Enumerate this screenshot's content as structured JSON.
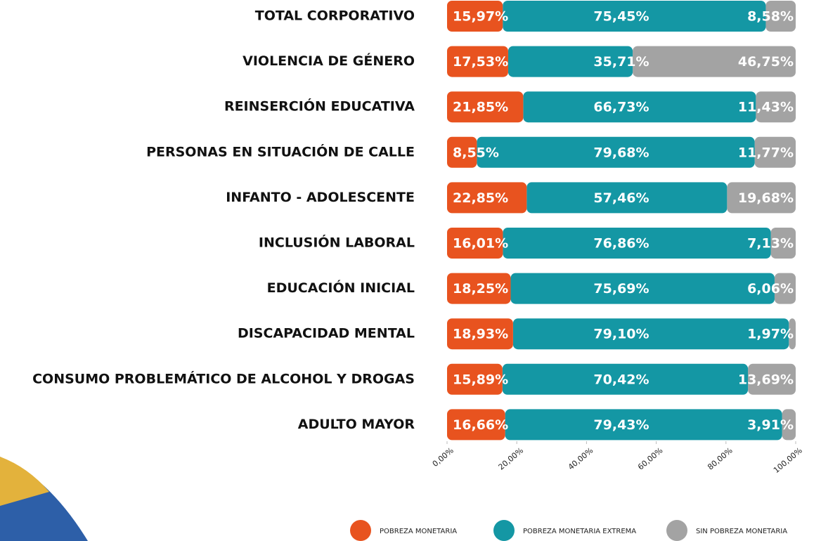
{
  "chart_data": {
    "type": "stacked-bar-horizontal",
    "categories": [
      "TOTAL CORPORATIVO",
      "VIOLENCIA DE GÉNERO",
      "REINSERCIÓN EDUCATIVA",
      "PERSONAS EN SITUACIÓN DE CALLE",
      "INFANTO - ADOLESCENTE",
      "INCLUSIÓN LABORAL",
      "EDUCACIÓN INICIAL",
      "DISCAPACIDAD MENTAL",
      "CONSUMO PROBLEMÁTICO DE ALCOHOL Y DROGAS",
      "ADULTO MAYOR"
    ],
    "series": [
      {
        "name": "POBREZA MONETARIA",
        "color": "#e8531f",
        "values": [
          15.97,
          17.53,
          21.85,
          8.55,
          22.85,
          16.01,
          18.25,
          18.93,
          15.89,
          16.66
        ],
        "value_labels": [
          "15,97%",
          "17,53%",
          "21,85%",
          "8,55%",
          "22,85%",
          "16,01%",
          "18,25%",
          "18,93%",
          "15,89%",
          "16,66%"
        ]
      },
      {
        "name": "POBREZA MONETARIA EXTREMA",
        "color": "#1497a4",
        "values": [
          75.45,
          35.71,
          66.73,
          79.68,
          57.46,
          76.86,
          75.69,
          79.1,
          70.42,
          79.43
        ],
        "value_labels": [
          "75,45%",
          "35,71%",
          "66,73%",
          "79,68%",
          "57,46%",
          "76,86%",
          "75,69%",
          "79,10%",
          "70,42%",
          "79,43%"
        ]
      },
      {
        "name": "SIN POBREZA MONETARIA",
        "color": "#a3a3a3",
        "values": [
          8.58,
          46.75,
          11.43,
          11.77,
          19.68,
          7.13,
          6.06,
          1.97,
          13.69,
          3.91
        ],
        "value_labels": [
          "8,58%",
          "46,75%",
          "11,43%",
          "11,77%",
          "19,68%",
          "7,13%",
          "6,06%",
          "1,97%",
          "13,69%",
          "3,91%"
        ]
      }
    ],
    "xlim": [
      0,
      100
    ],
    "xticks": [
      {
        "value": 0,
        "label": "0,00%"
      },
      {
        "value": 20,
        "label": "20,00%"
      },
      {
        "value": 40,
        "label": "40,00%"
      },
      {
        "value": 60,
        "label": "60,00%"
      },
      {
        "value": 80,
        "label": "80,00%"
      },
      {
        "value": 100,
        "label": "100,00%"
      }
    ]
  }
}
